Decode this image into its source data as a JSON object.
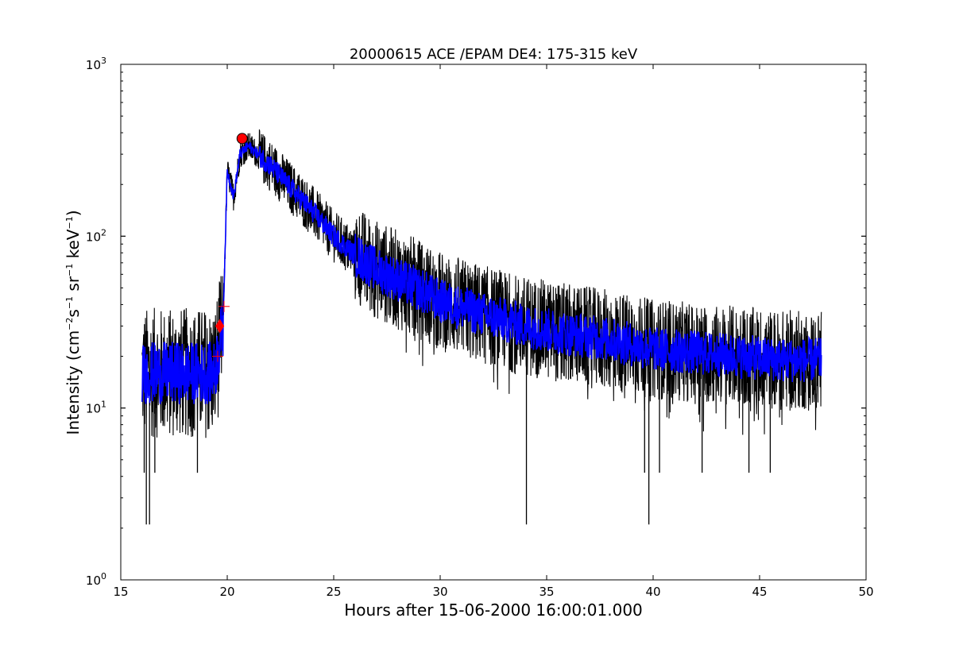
{
  "chart_data": {
    "type": "line",
    "title": "20000615 ACE /EPAM DE4: 175-315 keV",
    "xlabel": "Hours after 15-06-2000 16:00:01.000",
    "ylabel": {
      "prefix": "Intensity (cm",
      "exp1": "−2",
      "mid1": "s",
      "exp2": "−1",
      "mid2": " sr",
      "exp3": "−1",
      "mid3": " keV",
      "exp4": "−1",
      "suffix": ")"
    },
    "xlim": [
      15,
      50
    ],
    "ylim": [
      1,
      1000
    ],
    "y_scale": "log",
    "x_ticks": [
      "15",
      "20",
      "25",
      "30",
      "35",
      "40",
      "45",
      "50"
    ],
    "y_ticks": [
      {
        "base": "10",
        "exp": "0"
      },
      {
        "base": "10",
        "exp": "1"
      },
      {
        "base": "10",
        "exp": "2"
      },
      {
        "base": "10",
        "exp": "3"
      }
    ],
    "grid": false,
    "series": [
      {
        "style": "raw intensity (noisy)",
        "color": "#000000",
        "profile": [
          [
            16.0,
            16
          ],
          [
            19.4,
            16
          ],
          [
            19.8,
            30
          ],
          [
            20.0,
            240
          ],
          [
            20.3,
            170
          ],
          [
            20.6,
            300
          ],
          [
            21.0,
            335
          ],
          [
            22.0,
            260
          ],
          [
            23.0,
            190
          ],
          [
            24.0,
            140
          ],
          [
            25.0,
            100
          ],
          [
            26.0,
            78
          ],
          [
            27.0,
            64
          ],
          [
            28.0,
            56
          ],
          [
            29.0,
            49
          ],
          [
            30.0,
            42
          ],
          [
            32.0,
            35
          ],
          [
            34.0,
            30
          ],
          [
            36.0,
            27
          ],
          [
            38.0,
            25
          ],
          [
            40.0,
            22
          ],
          [
            42.0,
            21
          ],
          [
            44.0,
            20
          ],
          [
            46.0,
            19
          ],
          [
            47.9,
            19
          ]
        ]
      },
      {
        "style": "smoothed intensity",
        "color": "#0000ff",
        "profile": [
          [
            16.0,
            16
          ],
          [
            19.4,
            16
          ],
          [
            19.8,
            30
          ],
          [
            20.0,
            240
          ],
          [
            20.3,
            170
          ],
          [
            20.6,
            300
          ],
          [
            21.0,
            335
          ],
          [
            22.0,
            260
          ],
          [
            23.0,
            190
          ],
          [
            24.0,
            140
          ],
          [
            25.0,
            100
          ],
          [
            26.0,
            78
          ],
          [
            27.0,
            64
          ],
          [
            28.0,
            56
          ],
          [
            29.0,
            49
          ],
          [
            30.0,
            42
          ],
          [
            32.0,
            35
          ],
          [
            34.0,
            30
          ],
          [
            36.0,
            27
          ],
          [
            38.0,
            25
          ],
          [
            40.0,
            22
          ],
          [
            42.0,
            21
          ],
          [
            44.0,
            20
          ],
          [
            46.0,
            19
          ],
          [
            47.9,
            19
          ]
        ]
      }
    ],
    "markers": [
      {
        "kind": "circle",
        "color": "#ff0000",
        "x": 20.7,
        "y": 370
      },
      {
        "kind": "diamond",
        "color": "#ff0000",
        "x": 19.65,
        "y": 30
      },
      {
        "kind": "plus",
        "color": "#ff0000",
        "x": 19.55,
        "y": 20
      },
      {
        "kind": "plus",
        "color": "#ff0000",
        "x": 19.85,
        "y": 39
      }
    ],
    "spikes": [
      {
        "x": 16.2,
        "y": 2.1
      },
      {
        "x": 16.35,
        "y": 2.1
      },
      {
        "x": 16.1,
        "y": 4.2
      },
      {
        "x": 16.6,
        "y": 4.2
      },
      {
        "x": 18.6,
        "y": 4.2
      },
      {
        "x": 34.05,
        "y": 2.1
      },
      {
        "x": 39.8,
        "y": 2.1
      },
      {
        "x": 39.6,
        "y": 4.2
      },
      {
        "x": 40.3,
        "y": 4.2
      },
      {
        "x": 42.3,
        "y": 4.2
      },
      {
        "x": 44.5,
        "y": 4.2
      },
      {
        "x": 45.5,
        "y": 4.2
      }
    ]
  }
}
